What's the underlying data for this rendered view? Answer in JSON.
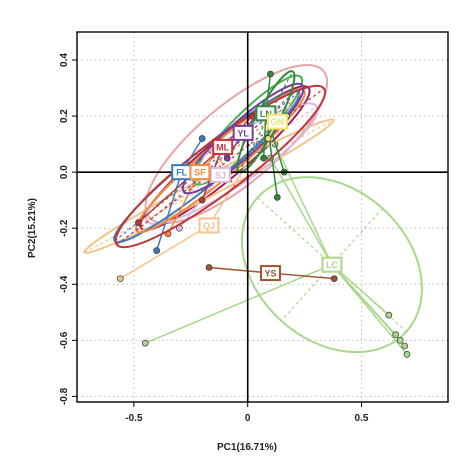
{
  "chart_data": {
    "type": "scatter",
    "xlabel": "PC1(16.71%)",
    "ylabel": "PC2(15.21%)",
    "xlim": [
      -0.75,
      0.88
    ],
    "ylim": [
      -0.82,
      0.5
    ],
    "x_ticks": [
      -0.5,
      0.0,
      0.5
    ],
    "x_tick_labels": [
      "-0.5",
      "0",
      "0.5"
    ],
    "y_ticks": [
      -0.8,
      -0.6,
      -0.4,
      -0.2,
      0.0,
      0.2,
      0.4
    ],
    "y_tick_labels": [
      "-0.8",
      "-0.6",
      "-0.4",
      "-0.2",
      "0.0",
      "0.2",
      "0.4"
    ],
    "grid": true,
    "reference_lines": {
      "x": 0,
      "y": 0
    },
    "groups": [
      {
        "label": "LC",
        "color": "#a8d88a",
        "centroid": [
          0.37,
          -0.33
        ],
        "points": [
          [
            -0.45,
            -0.61
          ],
          [
            0.62,
            -0.51
          ],
          [
            0.65,
            -0.58
          ],
          [
            0.67,
            -0.6
          ],
          [
            0.69,
            -0.62
          ],
          [
            0.7,
            -0.65
          ],
          [
            0.1,
            0.05
          ],
          [
            0.12,
            0.1
          ]
        ],
        "ellipse": {
          "cx": 0.37,
          "cy": -0.33,
          "rx": 0.44,
          "ry": 0.27,
          "angle": -42
        }
      },
      {
        "label": "YS",
        "color": "#a0522d",
        "centroid": [
          0.1,
          -0.36
        ],
        "points": [
          [
            -0.17,
            -0.34
          ],
          [
            0.38,
            -0.38
          ]
        ],
        "ellipse": null
      },
      {
        "label": "QJ",
        "color": "#f5c28a",
        "centroid": [
          -0.17,
          -0.19
        ],
        "points": [
          [
            -0.56,
            -0.38
          ],
          [
            0.05,
            0.1
          ]
        ],
        "ellipse": {
          "cx": -0.17,
          "cy": -0.05,
          "rx": 0.62,
          "ry": 0.035,
          "angle": 28
        }
      },
      {
        "label": "SJ",
        "color": "#d9b8e0",
        "centroid": [
          -0.12,
          -0.01
        ],
        "points": [
          [
            -0.3,
            -0.2
          ],
          [
            0.05,
            0.08
          ]
        ],
        "ellipse": {
          "cx": -0.07,
          "cy": 0.03,
          "rx": 0.45,
          "ry": 0.08,
          "angle": 34
        }
      },
      {
        "label": "FL",
        "color": "#3b7bbf",
        "centroid": [
          -0.29,
          0.0
        ],
        "points": [
          [
            -0.4,
            -0.28
          ],
          [
            -0.2,
            0.12
          ]
        ],
        "ellipse": {
          "cx": -0.18,
          "cy": 0.02,
          "rx": 0.52,
          "ry": 0.06,
          "angle": 39
        }
      },
      {
        "label": "SF",
        "color": "#f08a3c",
        "centroid": [
          -0.21,
          0.0
        ],
        "points": [
          [
            -0.35,
            -0.22
          ],
          [
            -0.1,
            0.1
          ]
        ],
        "ellipse": {
          "cx": -0.12,
          "cy": 0.04,
          "rx": 0.48,
          "ry": 0.06,
          "angle": 40
        }
      },
      {
        "label": "ML",
        "color": "#c0363a",
        "centroid": [
          -0.11,
          0.09
        ],
        "points": [
          [
            -0.48,
            -0.18
          ],
          [
            -0.2,
            -0.1
          ],
          [
            0.02,
            0.2
          ]
        ],
        "ellipse": {
          "cx": -0.12,
          "cy": 0.02,
          "rx": 0.57,
          "ry": 0.09,
          "angle": 37
        }
      },
      {
        "label": "YL",
        "color": "#7b3f9e",
        "centroid": [
          -0.02,
          0.14
        ],
        "points": [
          [
            -0.09,
            0.05
          ],
          [
            0.05,
            0.22
          ]
        ],
        "ellipse": {
          "cx": -0.02,
          "cy": 0.12,
          "rx": 0.35,
          "ry": 0.06,
          "angle": 42
        }
      },
      {
        "label": "LN",
        "color": "#2e8b3d",
        "centroid": [
          0.08,
          0.21
        ],
        "points": [
          [
            0.13,
            -0.09
          ],
          [
            0.1,
            0.35
          ],
          [
            0.07,
            0.05
          ],
          [
            0.16,
            0.0
          ]
        ],
        "ellipse": {
          "cx": 0.08,
          "cy": 0.18,
          "rx": 0.25,
          "ry": 0.04,
          "angle": 62
        }
      },
      {
        "label": "GN",
        "color": "#f2e26c",
        "centroid": [
          0.13,
          0.18
        ],
        "points": [
          [
            0.09,
            0.12
          ],
          [
            0.17,
            0.2
          ]
        ],
        "ellipse": null
      }
    ],
    "extra_ellipses": [
      {
        "cx": -0.05,
        "cy": 0.1,
        "rx": 0.5,
        "ry": 0.14,
        "angle": 40,
        "color": "#e8a5a5"
      },
      {
        "cx": -0.1,
        "cy": 0.05,
        "rx": 0.48,
        "ry": 0.07,
        "angle": 40,
        "color": "#a02050"
      },
      {
        "cx": 0.0,
        "cy": 0.15,
        "rx": 0.33,
        "ry": 0.06,
        "angle": 45,
        "color": "#4caf50"
      }
    ]
  }
}
